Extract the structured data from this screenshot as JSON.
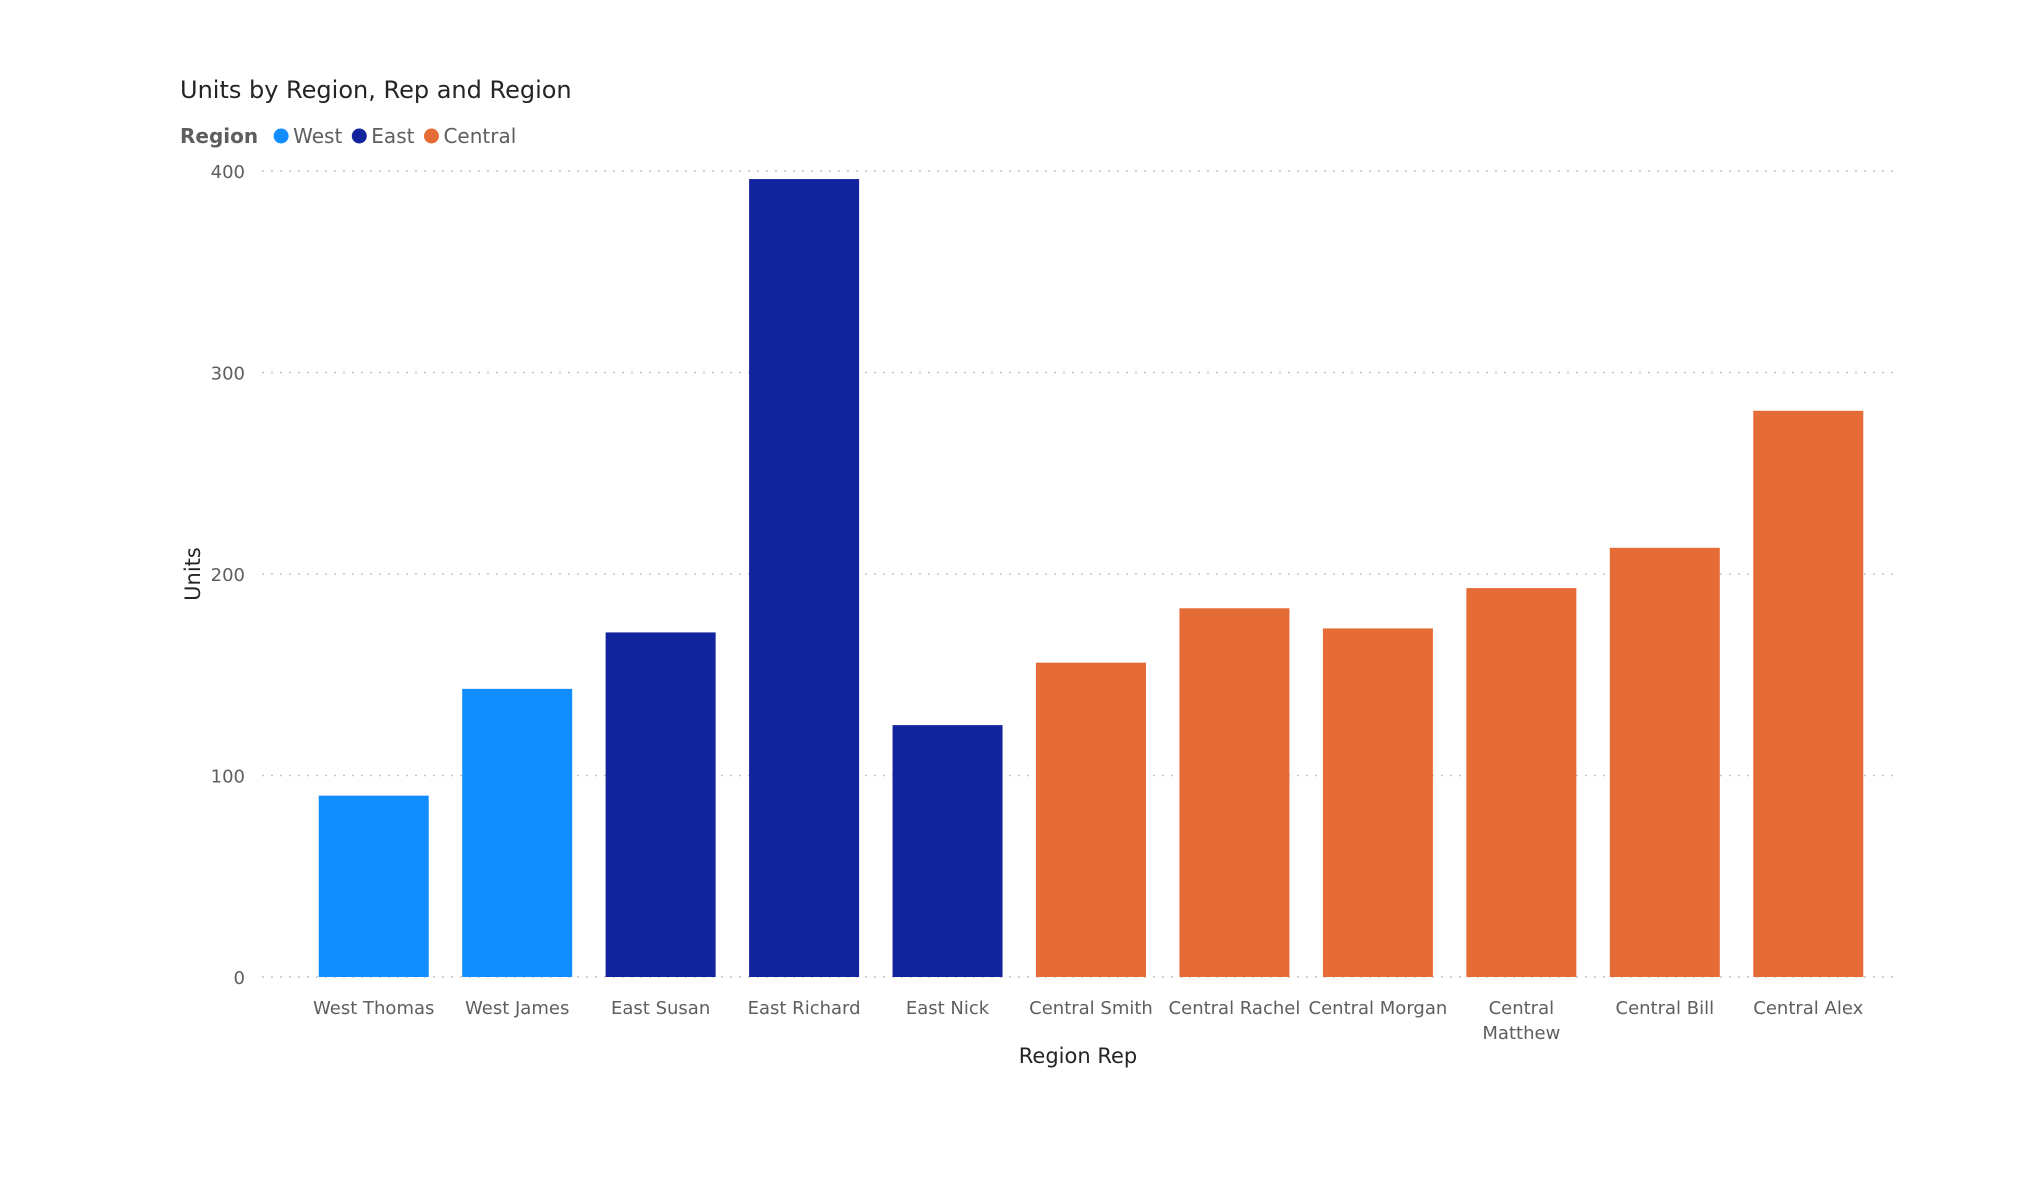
{
  "chart_data": {
    "type": "bar",
    "title": "Units by Region, Rep and Region",
    "legend": {
      "title": "Region",
      "placement": "top-left",
      "entries": [
        {
          "name": "West",
          "color": "#118DFF"
        },
        {
          "name": "East",
          "color": "#12239E"
        },
        {
          "name": "Central",
          "color": "#E66C37"
        }
      ]
    },
    "xlabel": "Region Rep",
    "ylabel": "Units",
    "ylim": [
      0,
      400
    ],
    "yticks": [
      "0",
      "100",
      "200",
      "300",
      "400"
    ],
    "grid": true,
    "categories": [
      [
        "West Thomas"
      ],
      [
        "West James"
      ],
      [
        "East Susan"
      ],
      [
        "East Richard"
      ],
      [
        "East Nick"
      ],
      [
        "Central Smith"
      ],
      [
        "Central Rachel"
      ],
      [
        "Central Morgan"
      ],
      [
        "Central",
        "Matthew"
      ],
      [
        "Central Bill"
      ],
      [
        "Central Alex"
      ]
    ],
    "values": [
      90,
      143,
      171,
      396,
      125,
      156,
      183,
      173,
      193,
      213,
      281
    ],
    "bar_region": [
      "West",
      "West",
      "East",
      "East",
      "East",
      "Central",
      "Central",
      "Central",
      "Central",
      "Central",
      "Central"
    ]
  }
}
